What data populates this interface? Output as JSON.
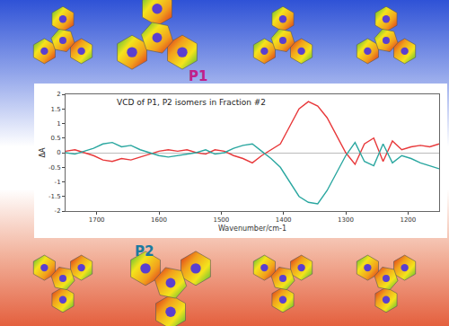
{
  "chart_data": {
    "type": "line",
    "title": "VCD of P1, P2 isomers in Fraction #2",
    "x_label": "Wavenumber/cm-1",
    "y_label": "ΔA",
    "x": [
      1750,
      1735,
      1720,
      1705,
      1690,
      1675,
      1660,
      1645,
      1630,
      1615,
      1600,
      1585,
      1570,
      1555,
      1540,
      1525,
      1510,
      1495,
      1480,
      1465,
      1450,
      1435,
      1420,
      1405,
      1390,
      1375,
      1360,
      1345,
      1330,
      1315,
      1300,
      1285,
      1270,
      1255,
      1240,
      1225,
      1210,
      1195,
      1180,
      1165,
      1150
    ],
    "series": [
      {
        "color": "#e8383a",
        "values": [
          0.05,
          0.1,
          0.0,
          -0.1,
          -0.25,
          -0.3,
          -0.2,
          -0.25,
          -0.15,
          -0.05,
          0.05,
          0.1,
          0.05,
          0.1,
          0.0,
          -0.05,
          0.1,
          0.05,
          -0.1,
          -0.2,
          -0.35,
          -0.1,
          0.1,
          0.3,
          0.9,
          1.5,
          1.75,
          1.6,
          1.2,
          0.6,
          0.0,
          -0.4,
          0.3,
          0.5,
          -0.3,
          0.4,
          0.1,
          0.2,
          0.25,
          0.2,
          0.3
        ]
      },
      {
        "color": "#2aa7a0",
        "values": [
          0.0,
          -0.05,
          0.05,
          0.15,
          0.3,
          0.35,
          0.2,
          0.25,
          0.1,
          0.0,
          -0.1,
          -0.15,
          -0.1,
          -0.05,
          0.0,
          0.1,
          -0.05,
          0.0,
          0.15,
          0.25,
          0.3,
          0.05,
          -0.2,
          -0.5,
          -1.0,
          -1.5,
          -1.7,
          -1.75,
          -1.3,
          -0.7,
          -0.1,
          0.35,
          -0.3,
          -0.45,
          0.3,
          -0.35,
          -0.1,
          -0.2,
          -0.35,
          -0.45,
          -0.55
        ]
      }
    ],
    "xlim": [
      1750,
      1150
    ],
    "xticks": [
      1700,
      1600,
      1500,
      1400,
      1300,
      1200
    ],
    "ylim": [
      -2,
      2
    ],
    "yticks": [
      -2,
      -1.5,
      -1,
      -0.5,
      0,
      0.5,
      1,
      1.5,
      2
    ],
    "grid": false
  },
  "labels": {
    "top": "P1",
    "bottom": "P2"
  }
}
